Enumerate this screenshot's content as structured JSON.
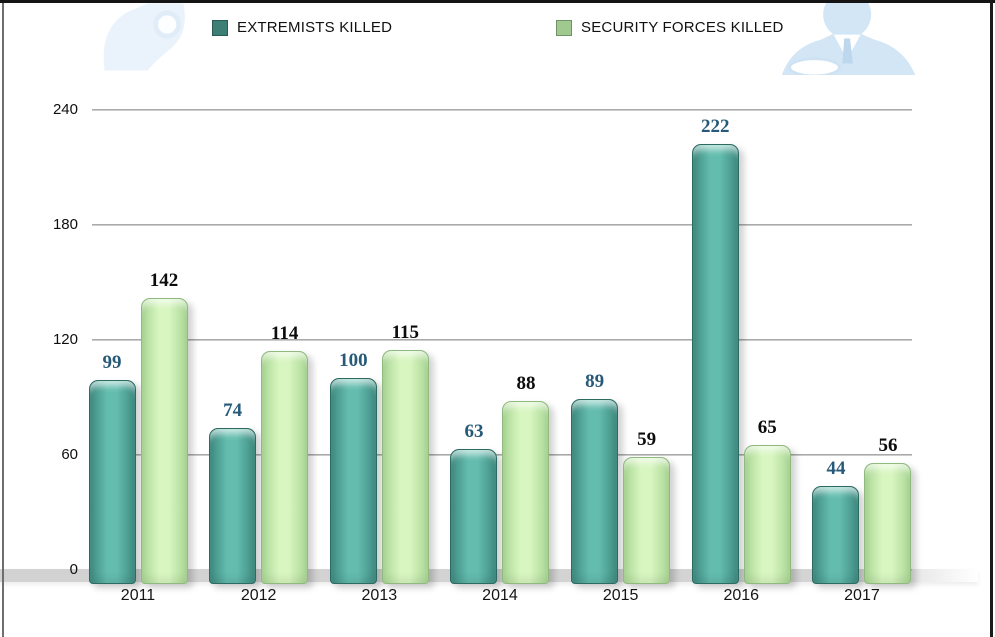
{
  "legend": {
    "items": [
      {
        "label": "EXTREMISTS KILLED",
        "swatch_color": "#3c7f75"
      },
      {
        "label": "SECURITY FORCES KILLED",
        "swatch_color": "#9fc98f"
      }
    ]
  },
  "background_icons": [
    "person-silhouette-left",
    "doctor-silhouette-right"
  ],
  "colors": {
    "frame": "#141414",
    "gridline": "#9a9a9a",
    "floor": "#d4d4d4",
    "background": "#ffffff",
    "silhouette_blue": "#d3e6f5"
  },
  "chart_data": {
    "type": "bar",
    "title": "",
    "xlabel": "",
    "ylabel": "",
    "categories": [
      "2011",
      "2012",
      "2013",
      "2014",
      "2015",
      "2016",
      "2017"
    ],
    "series": [
      {
        "name": "EXTREMISTS KILLED",
        "values": [
          99,
          74,
          100,
          63,
          89,
          222,
          44
        ],
        "bar_color_center": "#63bcae",
        "bar_color_edge": "#3f8b81",
        "bar_border_color": "#2c6b62",
        "label_color": "#265a78"
      },
      {
        "name": "SECURITY FORCES KILLED",
        "values": [
          142,
          114,
          115,
          88,
          59,
          65,
          56
        ],
        "bar_color_center": "#d8f6c0",
        "bar_color_edge": "#aad795",
        "bar_border_color": "#8fb97e",
        "label_color": "#0c0c0c"
      }
    ],
    "ylim": [
      0,
      240
    ],
    "yticks": [
      0,
      60,
      120,
      180,
      240
    ],
    "grid": true,
    "legend_position": "top"
  }
}
